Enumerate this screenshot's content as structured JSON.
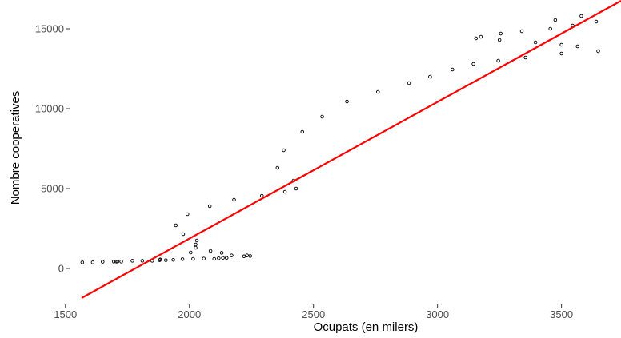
{
  "chart_data": {
    "type": "scatter",
    "title": "",
    "xlabel": "Ocupats (en milers)",
    "ylabel": "Nombre cooperatives",
    "xlim": [
      1520,
      3740
    ],
    "ylim": [
      -2200,
      16800
    ],
    "x_ticks": [
      1500,
      2000,
      2500,
      3000,
      3500
    ],
    "y_ticks": [
      0,
      5000,
      10000,
      15000
    ],
    "x_tick_labels": [
      "1500",
      "2000",
      "2500",
      "3000",
      "3500"
    ],
    "y_tick_labels": [
      "0",
      "5000",
      "10000",
      "15000"
    ],
    "grid": false,
    "legend": "none",
    "point_color": "#000000",
    "trend_color": "#ff0000",
    "trendline": {
      "x": [
        1565,
        3740
      ],
      "y": [
        -1850,
        16750
      ]
    },
    "points": [
      {
        "x": 1568,
        "y": 380
      },
      {
        "x": 1610,
        "y": 380
      },
      {
        "x": 1650,
        "y": 420
      },
      {
        "x": 1695,
        "y": 430
      },
      {
        "x": 1705,
        "y": 430
      },
      {
        "x": 1710,
        "y": 430
      },
      {
        "x": 1725,
        "y": 430
      },
      {
        "x": 1770,
        "y": 480
      },
      {
        "x": 1810,
        "y": 480
      },
      {
        "x": 1850,
        "y": 480
      },
      {
        "x": 1880,
        "y": 520
      },
      {
        "x": 1882,
        "y": 560
      },
      {
        "x": 1905,
        "y": 520
      },
      {
        "x": 1935,
        "y": 540
      },
      {
        "x": 1945,
        "y": 2700
      },
      {
        "x": 1972,
        "y": 580
      },
      {
        "x": 1975,
        "y": 2150
      },
      {
        "x": 1992,
        "y": 3400
      },
      {
        "x": 2005,
        "y": 1000
      },
      {
        "x": 2015,
        "y": 600
      },
      {
        "x": 2025,
        "y": 1300
      },
      {
        "x": 2025,
        "y": 1500
      },
      {
        "x": 2030,
        "y": 1750
      },
      {
        "x": 2058,
        "y": 620
      },
      {
        "x": 2082,
        "y": 3900
      },
      {
        "x": 2085,
        "y": 1100
      },
      {
        "x": 2100,
        "y": 600
      },
      {
        "x": 2118,
        "y": 640
      },
      {
        "x": 2130,
        "y": 980
      },
      {
        "x": 2135,
        "y": 660
      },
      {
        "x": 2150,
        "y": 660
      },
      {
        "x": 2170,
        "y": 820
      },
      {
        "x": 2180,
        "y": 4300
      },
      {
        "x": 2220,
        "y": 760
      },
      {
        "x": 2232,
        "y": 820
      },
      {
        "x": 2245,
        "y": 780
      },
      {
        "x": 2292,
        "y": 4550
      },
      {
        "x": 2355,
        "y": 6300
      },
      {
        "x": 2380,
        "y": 7400
      },
      {
        "x": 2385,
        "y": 4800
      },
      {
        "x": 2420,
        "y": 5500
      },
      {
        "x": 2430,
        "y": 5000
      },
      {
        "x": 2455,
        "y": 8550
      },
      {
        "x": 2535,
        "y": 9500
      },
      {
        "x": 2635,
        "y": 10450
      },
      {
        "x": 2760,
        "y": 11050
      },
      {
        "x": 2885,
        "y": 11600
      },
      {
        "x": 2970,
        "y": 12000
      },
      {
        "x": 3060,
        "y": 12450
      },
      {
        "x": 3145,
        "y": 12800
      },
      {
        "x": 3155,
        "y": 14400
      },
      {
        "x": 3175,
        "y": 14500
      },
      {
        "x": 3245,
        "y": 13000
      },
      {
        "x": 3250,
        "y": 14300
      },
      {
        "x": 3255,
        "y": 14700
      },
      {
        "x": 3340,
        "y": 14850
      },
      {
        "x": 3355,
        "y": 13200
      },
      {
        "x": 3395,
        "y": 14150
      },
      {
        "x": 3455,
        "y": 15000
      },
      {
        "x": 3475,
        "y": 15550
      },
      {
        "x": 3500,
        "y": 13450
      },
      {
        "x": 3500,
        "y": 14000
      },
      {
        "x": 3545,
        "y": 15200
      },
      {
        "x": 3565,
        "y": 13900
      },
      {
        "x": 3580,
        "y": 15800
      },
      {
        "x": 3640,
        "y": 15450
      },
      {
        "x": 3648,
        "y": 13600
      }
    ]
  }
}
